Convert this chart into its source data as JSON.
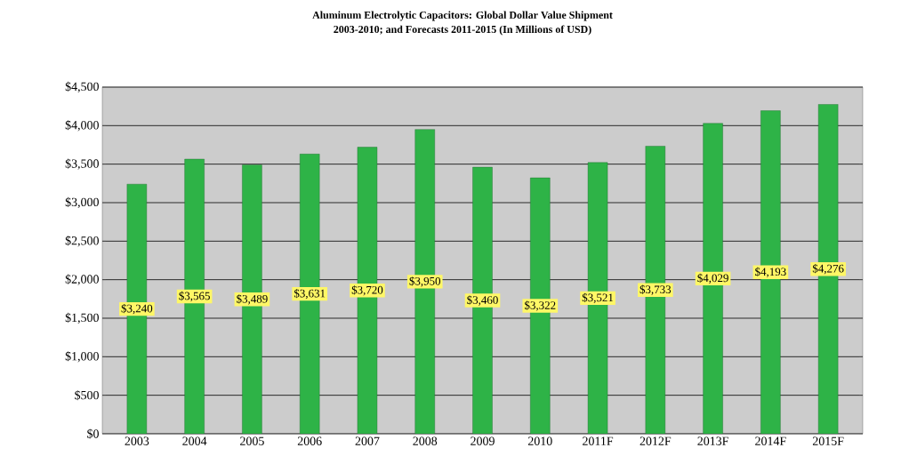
{
  "chart_data": {
    "type": "bar",
    "title": "Aluminum Electrolytic Capacitors: Global Dollar Value Shipment",
    "subtitle": "2003-2010; and Forecasts 2011-2015 (In Millions of USD)",
    "categories": [
      "2003",
      "2004",
      "2005",
      "2006",
      "2007",
      "2008",
      "2009",
      "2010",
      "2011F",
      "2012F",
      "2013F",
      "2014F",
      "2015F"
    ],
    "values": [
      3240,
      3565,
      3489,
      3631,
      3720,
      3950,
      3460,
      3322,
      3521,
      3733,
      4029,
      4193,
      4276
    ],
    "value_labels": [
      "$3,240",
      "$3,565",
      "$3,489",
      "$3,631",
      "$3,720",
      "$3,950",
      "$3,460",
      "$3,322",
      "$3,521",
      "$3,733",
      "$4,029",
      "$4,193",
      "$4,276"
    ],
    "color": "#2eb347",
    "ylim": [
      0,
      4500
    ],
    "yticks": [
      {
        "value": 0,
        "label": "$0"
      },
      {
        "value": 500,
        "label": "$500"
      },
      {
        "value": 1000,
        "label": "$1,000"
      },
      {
        "value": 1500,
        "label": "$1,500"
      },
      {
        "value": 2000,
        "label": "$2,000"
      },
      {
        "value": 2500,
        "label": "$2,500"
      },
      {
        "value": 3000,
        "label": "$3,000"
      },
      {
        "value": 3500,
        "label": "$3,500"
      },
      {
        "value": 4000,
        "label": "$4,000"
      },
      {
        "value": 4500,
        "label": "$4,500"
      }
    ],
    "grid": "y"
  }
}
